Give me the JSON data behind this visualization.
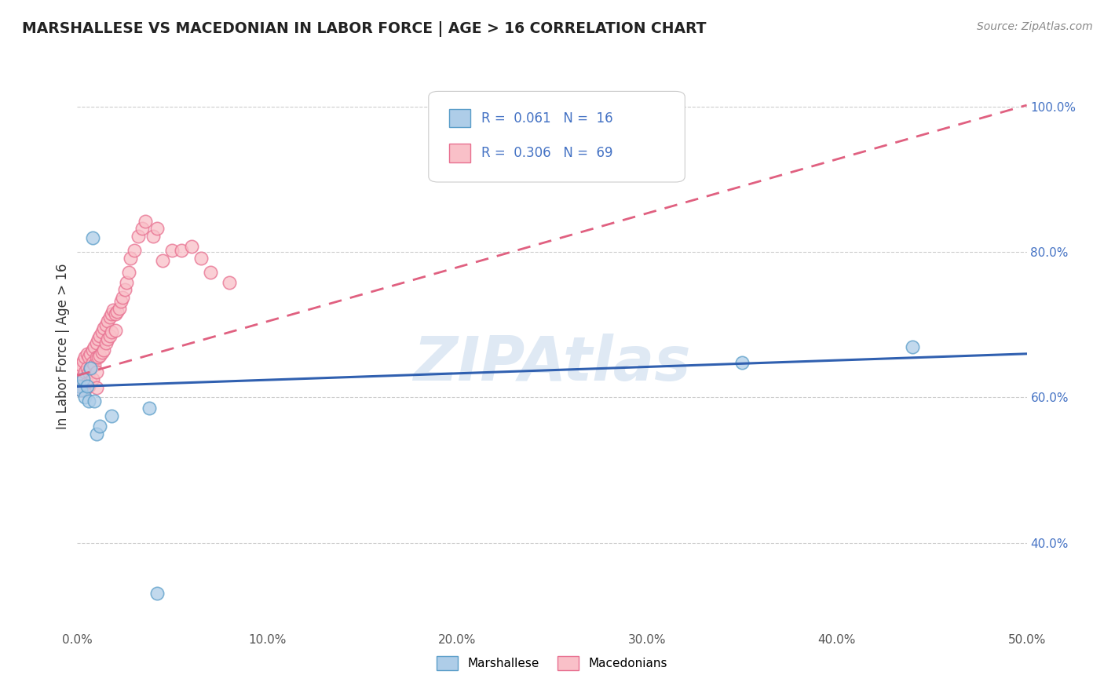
{
  "title": "MARSHALLESE VS MACEDONIAN IN LABOR FORCE | AGE > 16 CORRELATION CHART",
  "source_text": "Source: ZipAtlas.com",
  "ylabel": "In Labor Force | Age > 16",
  "xlim": [
    0.0,
    0.5
  ],
  "ylim": [
    0.28,
    1.06
  ],
  "xticks": [
    0.0,
    0.1,
    0.2,
    0.3,
    0.4,
    0.5
  ],
  "xticklabels": [
    "0.0%",
    "10.0%",
    "20.0%",
    "30.0%",
    "40.0%",
    "50.0%"
  ],
  "yticks": [
    0.4,
    0.6,
    0.8,
    1.0
  ],
  "yticklabels": [
    "40.0%",
    "60.0%",
    "80.0%",
    "100.0%"
  ],
  "legend1_r": "0.061",
  "legend1_n": "16",
  "legend2_r": "0.306",
  "legend2_n": "69",
  "marshallese_color": "#aecde8",
  "macedonian_color": "#f9c0c8",
  "marshallese_edge": "#5b9ec9",
  "macedonian_edge": "#e87090",
  "trendline_marshallese_color": "#3060b0",
  "trendline_macedonian_color": "#e06080",
  "watermark": "ZIPAtlas",
  "background_color": "#ffffff",
  "grid_color": "#c8c8c8",
  "marshallese_x": [
    0.001,
    0.002,
    0.003,
    0.004,
    0.005,
    0.006,
    0.007,
    0.008,
    0.009,
    0.01,
    0.012,
    0.018,
    0.038,
    0.042,
    0.35,
    0.44
  ],
  "marshallese_y": [
    0.615,
    0.61,
    0.625,
    0.6,
    0.615,
    0.595,
    0.64,
    0.82,
    0.595,
    0.55,
    0.56,
    0.575,
    0.585,
    0.33,
    0.648,
    0.67
  ],
  "macedonian_x": [
    0.001,
    0.001,
    0.002,
    0.002,
    0.002,
    0.003,
    0.003,
    0.003,
    0.004,
    0.004,
    0.004,
    0.005,
    0.005,
    0.005,
    0.006,
    0.006,
    0.006,
    0.007,
    0.007,
    0.007,
    0.008,
    0.008,
    0.008,
    0.009,
    0.009,
    0.01,
    0.01,
    0.01,
    0.01,
    0.011,
    0.011,
    0.012,
    0.012,
    0.013,
    0.013,
    0.014,
    0.014,
    0.015,
    0.015,
    0.016,
    0.016,
    0.017,
    0.017,
    0.018,
    0.018,
    0.019,
    0.02,
    0.02,
    0.021,
    0.022,
    0.023,
    0.024,
    0.025,
    0.026,
    0.027,
    0.028,
    0.03,
    0.032,
    0.034,
    0.036,
    0.04,
    0.042,
    0.045,
    0.05,
    0.055,
    0.06,
    0.065,
    0.07,
    0.08
  ],
  "macedonian_y": [
    0.64,
    0.62,
    0.645,
    0.625,
    0.61,
    0.65,
    0.63,
    0.615,
    0.655,
    0.635,
    0.61,
    0.66,
    0.64,
    0.62,
    0.655,
    0.635,
    0.615,
    0.66,
    0.64,
    0.622,
    0.665,
    0.648,
    0.625,
    0.67,
    0.645,
    0.675,
    0.655,
    0.635,
    0.613,
    0.68,
    0.655,
    0.685,
    0.658,
    0.69,
    0.662,
    0.695,
    0.665,
    0.7,
    0.675,
    0.705,
    0.68,
    0.71,
    0.685,
    0.715,
    0.69,
    0.72,
    0.715,
    0.692,
    0.718,
    0.722,
    0.732,
    0.738,
    0.748,
    0.758,
    0.772,
    0.792,
    0.802,
    0.822,
    0.832,
    0.842,
    0.822,
    0.832,
    0.788,
    0.802,
    0.802,
    0.808,
    0.792,
    0.772,
    0.758
  ],
  "trend_marsh_x0": 0.0,
  "trend_marsh_x1": 0.5,
  "trend_marsh_y0": 0.615,
  "trend_marsh_y1": 0.66,
  "trend_mac_x0": 0.0,
  "trend_mac_x1": 0.5,
  "trend_mac_y0": 0.63,
  "trend_mac_y1": 1.002
}
